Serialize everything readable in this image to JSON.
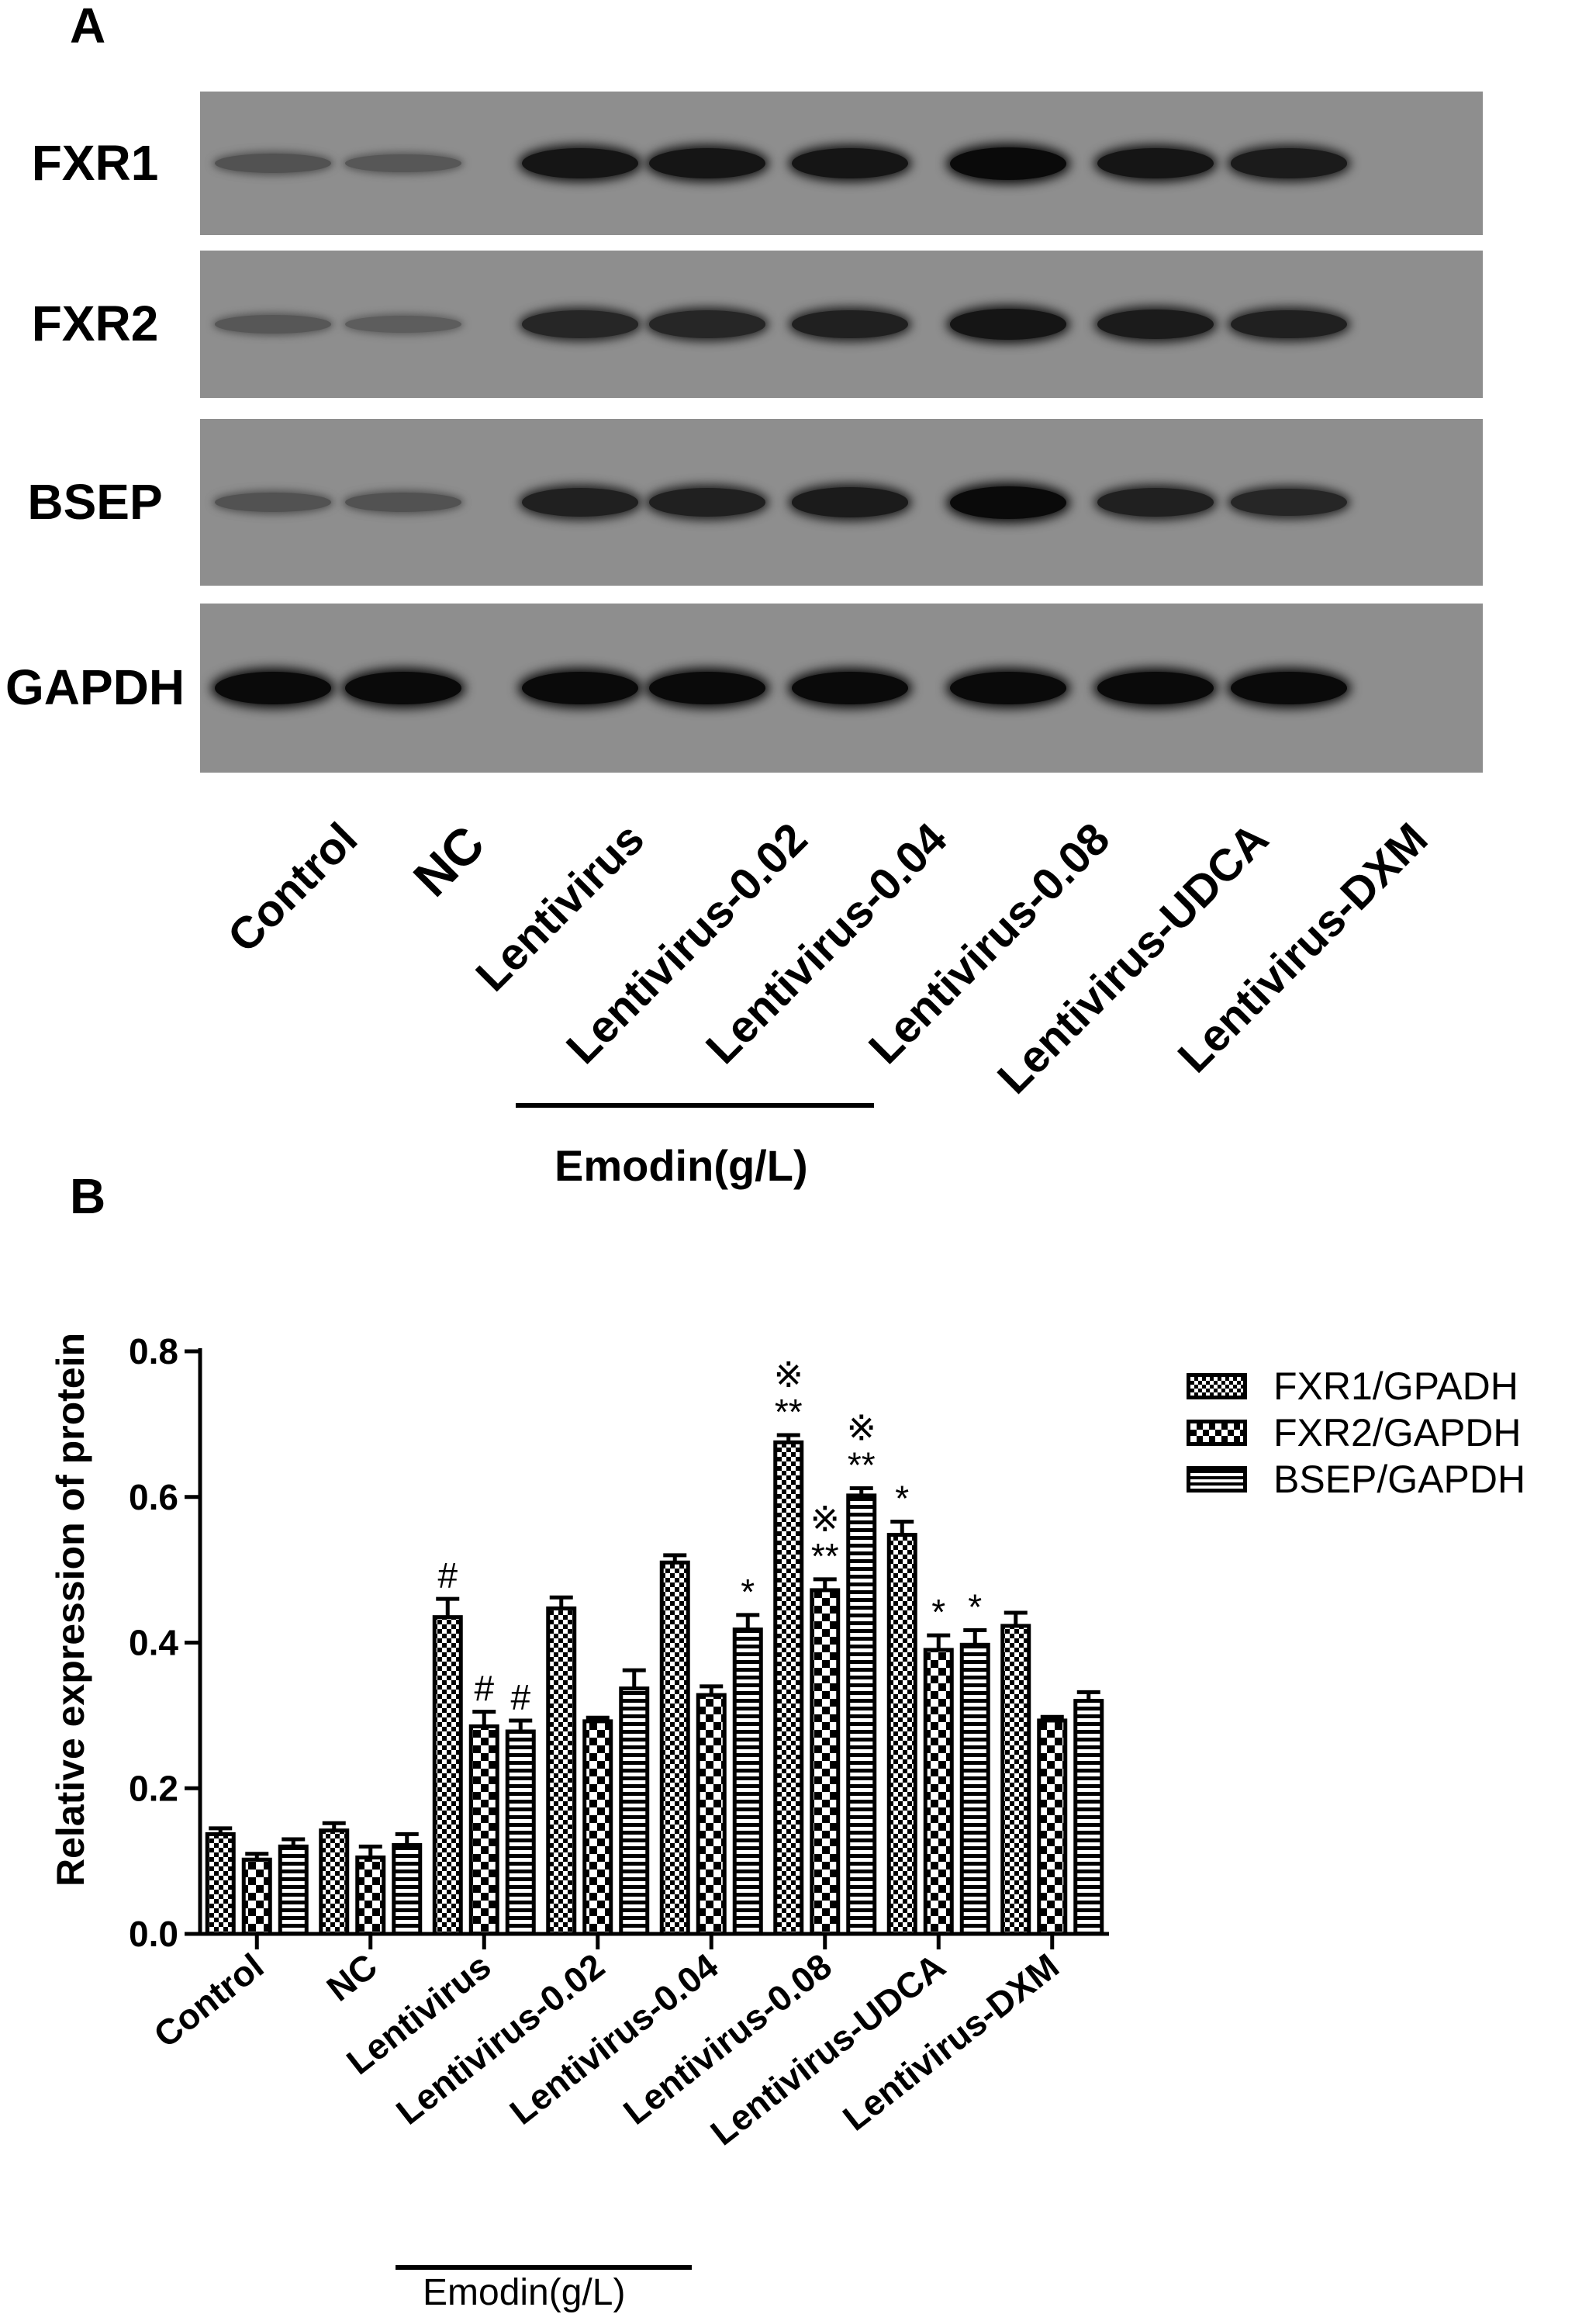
{
  "panel_a": {
    "letter": "A",
    "rows": [
      {
        "label": "FXR1",
        "intensity": [
          0.35,
          0.3,
          0.9,
          0.9,
          0.9,
          1.0,
          0.9,
          0.85
        ]
      },
      {
        "label": "FXR2",
        "intensity": [
          0.3,
          0.25,
          0.75,
          0.75,
          0.8,
          0.9,
          0.85,
          0.8
        ]
      },
      {
        "label": "BSEP",
        "intensity": [
          0.35,
          0.35,
          0.8,
          0.8,
          0.85,
          1.0,
          0.8,
          0.75
        ]
      },
      {
        "label": "GAPDH",
        "intensity": [
          1.0,
          1.0,
          1.0,
          1.0,
          1.0,
          1.0,
          1.0,
          1.0
        ]
      }
    ],
    "lanes": [
      "Control",
      "NC",
      "Lentivirus",
      "Lentivirus-0.02",
      "Lentivirus-0.04",
      "Lentivirus-0.08",
      "Lentivirus-UDCA",
      "Lentivirus-DXM"
    ],
    "bracket_label": "Emodin(g/L)"
  },
  "panel_b": {
    "letter": "B",
    "bracket_label": "Emodin(g/L)"
  },
  "chart_data": {
    "type": "bar",
    "title": "",
    "xlabel": "",
    "ylabel": "Relative expression of  protein",
    "ylim": [
      0.0,
      0.8
    ],
    "yticks": [
      "0.0",
      "0.2",
      "0.4",
      "0.6",
      "0.8"
    ],
    "categories": [
      "Control",
      "NC",
      "Lentivirus",
      "Lentivirus-0.02",
      "Lentivirus-0.04",
      "Lentivirus-0.08",
      "Lentivirus-UDCA",
      "Lentivirus-DXM"
    ],
    "legend_position": "top-right",
    "series": [
      {
        "name": "FXR1/GPADH",
        "pattern": "check",
        "values": [
          0.137,
          0.142,
          0.435,
          0.447,
          0.51,
          0.675,
          0.548,
          0.423
        ],
        "errors": [
          0.008,
          0.01,
          0.025,
          0.015,
          0.01,
          0.01,
          0.018,
          0.018
        ],
        "marks": [
          "",
          "",
          "#",
          "",
          "",
          "**|※",
          "*",
          ""
        ]
      },
      {
        "name": "FXR2/GAPDH",
        "pattern": "diamond",
        "values": [
          0.102,
          0.105,
          0.285,
          0.292,
          0.328,
          0.472,
          0.39,
          0.293
        ],
        "errors": [
          0.008,
          0.015,
          0.02,
          0.005,
          0.012,
          0.015,
          0.02,
          0.005
        ],
        "marks": [
          "",
          "",
          "#",
          "",
          "",
          "**|※",
          "*",
          ""
        ]
      },
      {
        "name": "BSEP/GAPDH",
        "pattern": "stripe",
        "values": [
          0.12,
          0.122,
          0.278,
          0.337,
          0.418,
          0.602,
          0.397,
          0.32
        ],
        "errors": [
          0.01,
          0.015,
          0.015,
          0.025,
          0.02,
          0.01,
          0.02,
          0.012
        ],
        "marks": [
          "",
          "",
          "#",
          "",
          "*",
          "**|※",
          "*",
          ""
        ]
      }
    ]
  }
}
